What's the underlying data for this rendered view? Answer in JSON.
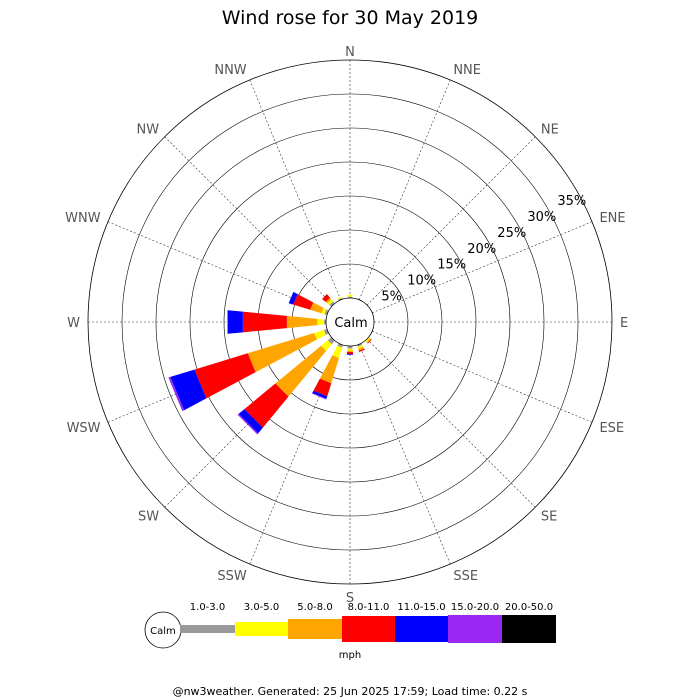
{
  "chart_data": {
    "type": "windrose",
    "title": "Wind rose for 30 May 2019",
    "calm_label": "Calm",
    "directions": [
      "N",
      "NNE",
      "NE",
      "ENE",
      "E",
      "ESE",
      "SE",
      "SSE",
      "S",
      "SSW",
      "SW",
      "WSW",
      "W",
      "WNW",
      "NW",
      "NNW"
    ],
    "ring_labels": [
      "5%",
      "10%",
      "15%",
      "20%",
      "25%",
      "30%",
      "35%"
    ],
    "ring_values": [
      5,
      10,
      15,
      20,
      25,
      30,
      35
    ],
    "radial_max": 35,
    "speed_bins": [
      {
        "label": "1.0-3.0",
        "color": "#999999"
      },
      {
        "label": "3.0-5.0",
        "color": "#ffff00"
      },
      {
        "label": "5.0-8.0",
        "color": "#ffa500"
      },
      {
        "label": "8.0-11.0",
        "color": "#ff0000"
      },
      {
        "label": "11.0-15.0",
        "color": "#0000ff"
      },
      {
        "label": "15.0-20.0",
        "color": "#9b27f2"
      },
      {
        "label": "20.0-50.0",
        "color": "#000000"
      }
    ],
    "units": "mph",
    "series": [
      {
        "direction": "N",
        "values": [
          0.2,
          0.3,
          0.0,
          0.0,
          0.0,
          0.0,
          0.0
        ]
      },
      {
        "direction": "NNE",
        "values": [
          0.1,
          0.0,
          0.0,
          0.0,
          0.0,
          0.0,
          0.0
        ]
      },
      {
        "direction": "NE",
        "values": [
          0.0,
          0.0,
          0.0,
          0.0,
          0.0,
          0.0,
          0.0
        ]
      },
      {
        "direction": "ENE",
        "values": [
          0.0,
          0.0,
          0.0,
          0.0,
          0.0,
          0.0,
          0.0
        ]
      },
      {
        "direction": "E",
        "values": [
          0.0,
          0.0,
          0.0,
          0.0,
          0.0,
          0.0,
          0.0
        ]
      },
      {
        "direction": "ESE",
        "values": [
          0.0,
          0.0,
          0.0,
          0.0,
          0.0,
          0.0,
          0.0
        ]
      },
      {
        "direction": "SE",
        "values": [
          0.0,
          0.3,
          0.2,
          0.1,
          0.0,
          0.0,
          0.0
        ]
      },
      {
        "direction": "SSE",
        "values": [
          0.3,
          0.3,
          0.3,
          0.2,
          0.0,
          0.0,
          0.0
        ]
      },
      {
        "direction": "S",
        "values": [
          0.4,
          0.3,
          0.2,
          0.3,
          0.1,
          0.0,
          0.0
        ]
      },
      {
        "direction": "SSW",
        "values": [
          0.4,
          1.6,
          3.9,
          2.0,
          0.4,
          0.1,
          0.0
        ]
      },
      {
        "direction": "SW",
        "values": [
          0.7,
          1.3,
          8.7,
          5.9,
          1.1,
          0.2,
          0.0
        ]
      },
      {
        "direction": "WSW",
        "values": [
          0.5,
          1.5,
          10.2,
          8.2,
          3.7,
          0.3,
          0.0
        ]
      },
      {
        "direction": "W",
        "values": [
          0.3,
          1.0,
          4.5,
          6.5,
          2.2,
          0.1,
          0.0
        ]
      },
      {
        "direction": "WNW",
        "values": [
          0.4,
          0.5,
          1.7,
          2.6,
          0.7,
          0.0,
          0.0
        ]
      },
      {
        "direction": "NW",
        "values": [
          0.4,
          0.4,
          0.3,
          0.7,
          0.0,
          0.0,
          0.0
        ]
      },
      {
        "direction": "NNW",
        "values": [
          0.2,
          0.2,
          0.0,
          0.0,
          0.0,
          0.0,
          0.0
        ]
      }
    ]
  },
  "footer": "@nw3weather. Generated: 25 Jun 2025 17:59; Load time: 0.22 s"
}
